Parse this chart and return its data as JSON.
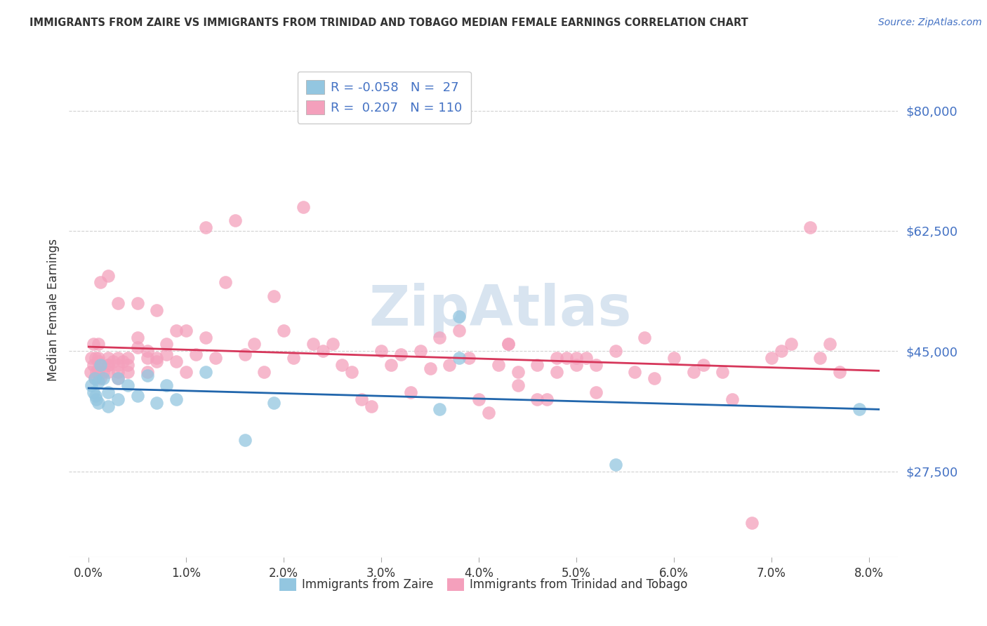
{
  "title": "IMMIGRANTS FROM ZAIRE VS IMMIGRANTS FROM TRINIDAD AND TOBAGO MEDIAN FEMALE EARNINGS CORRELATION CHART",
  "source": "Source: ZipAtlas.com",
  "ylabel": "Median Female Earnings",
  "ytick_labels": [
    "$27,500",
    "$45,000",
    "$62,500",
    "$80,000"
  ],
  "ytick_values": [
    27500,
    45000,
    62500,
    80000
  ],
  "xtick_labels": [
    "0.0%",
    "1.0%",
    "2.0%",
    "3.0%",
    "4.0%",
    "5.0%",
    "6.0%",
    "7.0%",
    "8.0%"
  ],
  "xtick_values": [
    0.0,
    0.01,
    0.02,
    0.03,
    0.04,
    0.05,
    0.06,
    0.07,
    0.08
  ],
  "xlim": [
    -0.002,
    0.083
  ],
  "ylim": [
    15000,
    87000
  ],
  "blue_scatter_color": "#93c6e0",
  "pink_scatter_color": "#f4a0bc",
  "blue_line_color": "#2166ac",
  "pink_line_color": "#d6365a",
  "watermark_text": "ZipAtlas",
  "watermark_color": "#d8e4f0",
  "background_color": "#ffffff",
  "grid_color": "#cccccc",
  "label_color": "#4472c4",
  "text_color": "#333333",
  "legend_r1": "R = -0.058",
  "legend_n1": "N =  27",
  "legend_r2": "R =  0.207",
  "legend_n2": "N = 110",
  "bottom_label1": "Immigrants from Zaire",
  "bottom_label2": "Immigrants from Trinidad and Tobago",
  "zaire_x": [
    0.0003,
    0.0005,
    0.0006,
    0.0007,
    0.0008,
    0.001,
    0.001,
    0.0012,
    0.0015,
    0.002,
    0.002,
    0.003,
    0.003,
    0.004,
    0.005,
    0.006,
    0.007,
    0.008,
    0.009,
    0.012,
    0.016,
    0.019,
    0.036,
    0.038,
    0.038,
    0.054,
    0.079
  ],
  "zaire_y": [
    40000,
    39000,
    41000,
    38500,
    38000,
    40500,
    37500,
    43000,
    41000,
    39000,
    37000,
    41000,
    38000,
    40000,
    38500,
    41500,
    37500,
    40000,
    38000,
    42000,
    32000,
    37500,
    36500,
    50000,
    44000,
    28500,
    36500
  ],
  "tt_x": [
    0.0002,
    0.0003,
    0.0005,
    0.0005,
    0.0006,
    0.0007,
    0.0008,
    0.001,
    0.001,
    0.001,
    0.001,
    0.001,
    0.0012,
    0.0012,
    0.0015,
    0.002,
    0.002,
    0.002,
    0.002,
    0.002,
    0.0025,
    0.003,
    0.003,
    0.003,
    0.003,
    0.003,
    0.0035,
    0.004,
    0.004,
    0.004,
    0.005,
    0.005,
    0.005,
    0.006,
    0.006,
    0.006,
    0.007,
    0.007,
    0.007,
    0.008,
    0.008,
    0.009,
    0.009,
    0.01,
    0.01,
    0.011,
    0.012,
    0.012,
    0.013,
    0.014,
    0.015,
    0.016,
    0.017,
    0.018,
    0.019,
    0.02,
    0.021,
    0.022,
    0.023,
    0.024,
    0.025,
    0.026,
    0.027,
    0.028,
    0.029,
    0.03,
    0.031,
    0.032,
    0.033,
    0.034,
    0.035,
    0.036,
    0.037,
    0.038,
    0.039,
    0.04,
    0.041,
    0.042,
    0.043,
    0.044,
    0.046,
    0.047,
    0.048,
    0.049,
    0.05,
    0.051,
    0.052,
    0.054,
    0.056,
    0.057,
    0.058,
    0.06,
    0.062,
    0.063,
    0.065,
    0.066,
    0.068,
    0.07,
    0.071,
    0.072,
    0.074,
    0.075,
    0.076,
    0.077,
    0.043,
    0.044,
    0.05,
    0.052,
    0.046,
    0.048
  ],
  "tt_y": [
    42000,
    44000,
    46000,
    43000,
    41000,
    44000,
    42000,
    43500,
    42000,
    44000,
    42500,
    46000,
    55000,
    41000,
    42000,
    43000,
    44000,
    42000,
    56000,
    43000,
    43500,
    44000,
    42000,
    41000,
    43000,
    52000,
    43500,
    43000,
    44000,
    42000,
    52000,
    47000,
    45500,
    42000,
    44000,
    45000,
    44000,
    43500,
    51000,
    44500,
    46000,
    43500,
    48000,
    42000,
    48000,
    44500,
    63000,
    47000,
    44000,
    55000,
    64000,
    44500,
    46000,
    42000,
    53000,
    48000,
    44000,
    66000,
    46000,
    45000,
    46000,
    43000,
    42000,
    38000,
    37000,
    45000,
    43000,
    44500,
    39000,
    45000,
    42500,
    47000,
    43000,
    48000,
    44000,
    38000,
    36000,
    43000,
    46000,
    40000,
    38000,
    38000,
    42000,
    44000,
    43000,
    44000,
    39000,
    45000,
    42000,
    47000,
    41000,
    44000,
    42000,
    43000,
    42000,
    38000,
    20000,
    44000,
    45000,
    46000,
    63000,
    44000,
    46000,
    42000,
    46000,
    42000,
    44000,
    43000,
    43000,
    44000
  ]
}
